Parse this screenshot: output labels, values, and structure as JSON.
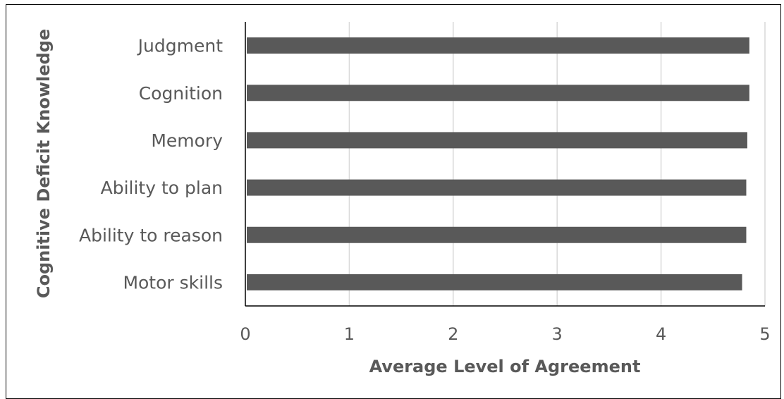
{
  "chart_data": {
    "type": "bar",
    "orientation": "horizontal",
    "title": "",
    "xlabel": "Average Level of Agreement",
    "ylabel": "Cognitive Deficit Knowledge",
    "categories": [
      "Judgment",
      "Cognition",
      "Memory",
      "Ability to plan",
      "Ability to reason",
      "Motor skills"
    ],
    "values": [
      4.85,
      4.85,
      4.83,
      4.82,
      4.82,
      4.78
    ],
    "xlim": [
      0,
      5
    ],
    "xticks": [
      "0",
      "1",
      "2",
      "3",
      "4",
      "5"
    ],
    "grid": "vertical",
    "legend": "none",
    "bar_color": "#595959",
    "grid_color": "#d9d9d9"
  }
}
